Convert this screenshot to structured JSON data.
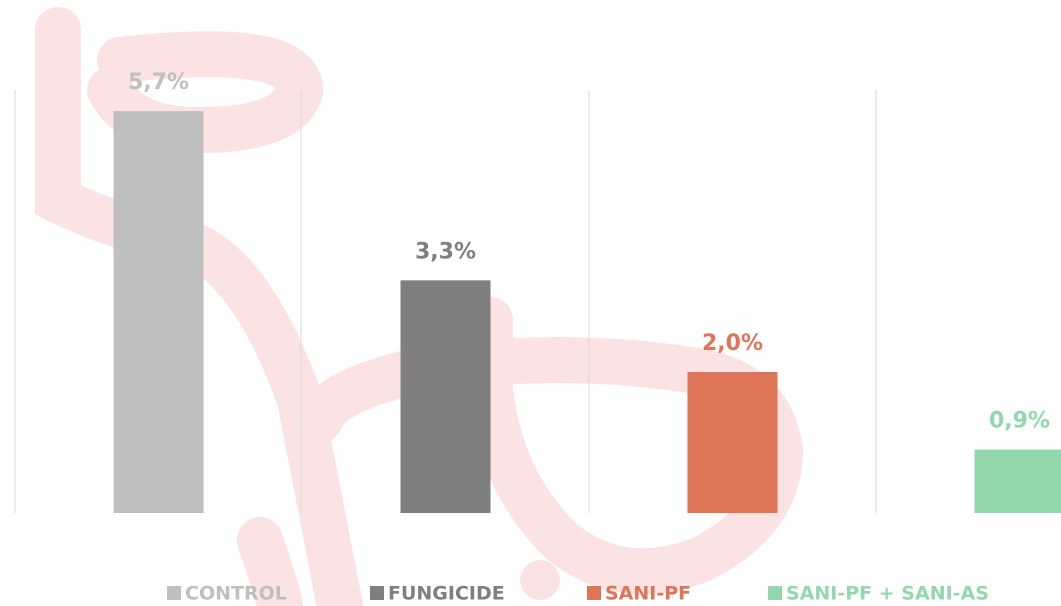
{
  "chart_data": {
    "type": "bar",
    "series": [
      {
        "name": "CONTROL",
        "color": "#bfbfbf",
        "values": [
          5.7
        ],
        "value_labels": [
          "5,7%"
        ]
      },
      {
        "name": "FUNGICIDE",
        "color": "#7f7f7f",
        "values": [
          3.3
        ],
        "value_labels": [
          "3,3%"
        ]
      },
      {
        "name": "SANI-PF",
        "color": "#dd7556",
        "values": [
          2.0
        ],
        "value_labels": [
          "2,0%"
        ]
      },
      {
        "name": "SANI-PF + SANI-AS",
        "color": "#93d8ad",
        "values": [
          0.9
        ],
        "value_labels": [
          "0,9%"
        ]
      }
    ],
    "ylim": [
      0,
      6
    ]
  }
}
